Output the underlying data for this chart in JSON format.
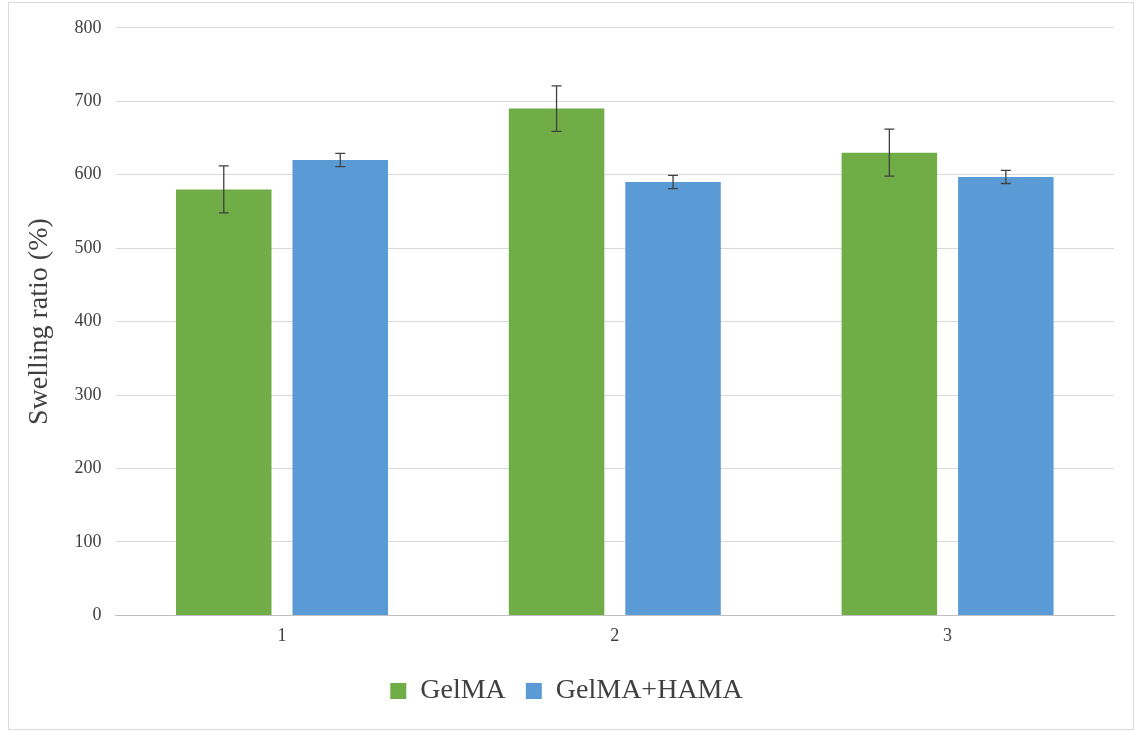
{
  "chart_data": {
    "type": "bar",
    "ylabel": "Swelling ratio (%)",
    "categories": [
      "1",
      "2",
      "3"
    ],
    "series": [
      {
        "name": "GelMA",
        "color": "#70ad47",
        "values": [
          580,
          690,
          630
        ],
        "errors": [
          32,
          31,
          32
        ]
      },
      {
        "name": "GelMA+HAMA",
        "color": "#5b9bd5",
        "values": [
          620,
          590,
          597
        ],
        "errors": [
          9,
          9,
          9
        ]
      }
    ],
    "ylim": [
      0,
      800
    ],
    "yticks": [
      0,
      100,
      200,
      300,
      400,
      500,
      600,
      700,
      800
    ],
    "grid": "y",
    "legend": "bottom"
  }
}
